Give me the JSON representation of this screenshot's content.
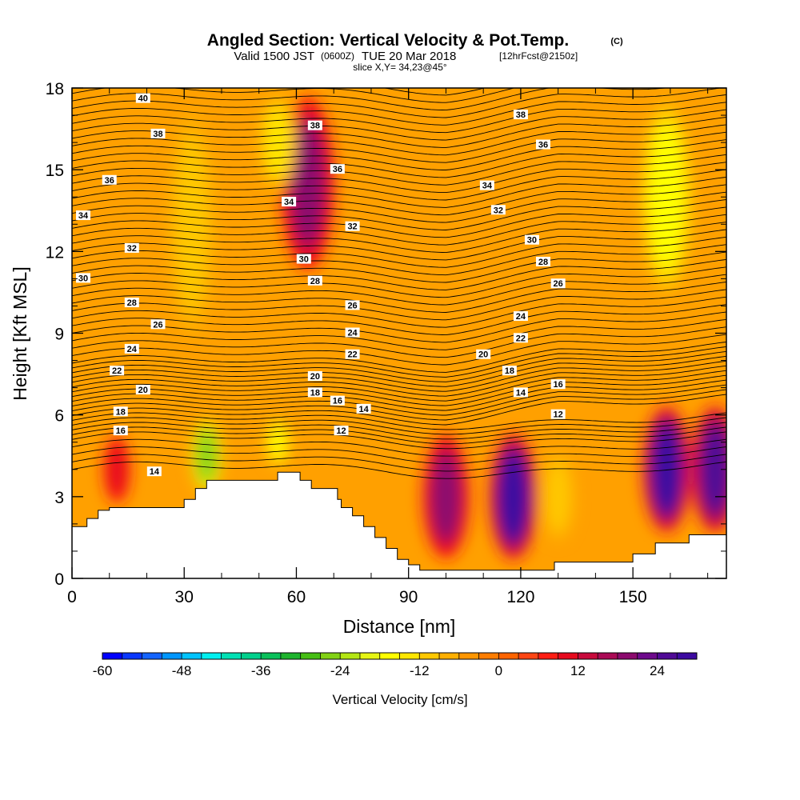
{
  "title": {
    "main": "Angled Section: Vertical Velocity & Pot.Temp.",
    "main_unit": "(C)",
    "valid_prefix": "Valid 1500 JST",
    "valid_zulu": "(0600Z)",
    "valid_date": "TUE 20 Mar 2018",
    "valid_fcst": "[12hrFcst@2150z]",
    "slice": "slice X,Y= 34,23@45°"
  },
  "chart_data": {
    "type": "heatmap",
    "xlabel": "Distance [nm]",
    "ylabel": "Height [Kft MSL]",
    "xlim": [
      0,
      175
    ],
    "ylim": [
      0,
      18
    ],
    "x_ticks": [
      0,
      30,
      60,
      90,
      120,
      150
    ],
    "x_tick_labels": [
      "0",
      "30",
      "60",
      "90",
      "120",
      "150"
    ],
    "y_ticks": [
      0,
      3,
      6,
      9,
      12,
      15,
      18
    ],
    "y_tick_labels": [
      "0",
      "3",
      "6",
      "9",
      "12",
      "15",
      "18"
    ],
    "terrain": {
      "description": "terrain height profile (Kft) along section",
      "x": [
        0,
        4,
        7,
        10,
        30,
        33,
        36,
        52,
        55,
        58,
        61,
        64,
        68,
        71,
        72,
        75,
        78,
        81,
        84,
        87,
        90,
        93,
        96,
        99,
        123,
        129,
        132,
        144,
        150,
        156,
        162,
        165,
        175
      ],
      "y": [
        1.9,
        2.2,
        2.5,
        2.6,
        2.9,
        3.3,
        3.6,
        3.6,
        3.9,
        3.9,
        3.6,
        3.3,
        3.3,
        2.9,
        2.6,
        2.3,
        1.9,
        1.5,
        1.1,
        0.7,
        0.5,
        0.3,
        0.3,
        0.3,
        0.3,
        0.6,
        0.6,
        0.6,
        0.9,
        1.3,
        1.3,
        1.6,
        1.6
      ]
    },
    "vertical_velocity_features": [
      {
        "kind": "updraft",
        "x": 63,
        "y_range": [
          11,
          18
        ],
        "peak": 18
      },
      {
        "kind": "updraft",
        "x": 100,
        "y_range": [
          0.5,
          5.5
        ],
        "peak": 18
      },
      {
        "kind": "updraft",
        "x": 118,
        "y_range": [
          0.5,
          5.5
        ],
        "peak": 27
      },
      {
        "kind": "updraft",
        "x": 159,
        "y_range": [
          1.5,
          6.5
        ],
        "peak": 27
      },
      {
        "kind": "updraft",
        "x": 172,
        "y_range": [
          1.5,
          6.5
        ],
        "peak": 24
      },
      {
        "kind": "updraft",
        "x": 12,
        "y_range": [
          2.5,
          5.5
        ],
        "peak": 9
      },
      {
        "kind": "downdraft",
        "x": 36,
        "y_range": [
          3,
          6
        ],
        "peak": -27
      },
      {
        "kind": "downdraft",
        "x": 55,
        "y_range": [
          4,
          6
        ],
        "peak": -18
      },
      {
        "kind": "downdraft",
        "x": 159,
        "y_range": [
          10,
          18
        ],
        "peak": -18
      },
      {
        "kind": "downdraft",
        "x": 130,
        "y_range": [
          1,
          5
        ],
        "peak": -12
      },
      {
        "kind": "downdraft",
        "x": 32,
        "y_range": [
          8,
          18
        ],
        "peak": -12
      },
      {
        "kind": "downdraft",
        "x": 55,
        "y_range": [
          14,
          18
        ],
        "peak": -15
      }
    ],
    "isentropes": {
      "levels": [
        12,
        14,
        16,
        18,
        20,
        22,
        24,
        26,
        28,
        30,
        32,
        34,
        36,
        38,
        40
      ],
      "labels": [
        {
          "text": "40",
          "x": 19,
          "y": 17.6
        },
        {
          "text": "38",
          "x": 23,
          "y": 16.3
        },
        {
          "text": "36",
          "x": 10,
          "y": 14.6
        },
        {
          "text": "34",
          "x": 3,
          "y": 13.3
        },
        {
          "text": "32",
          "x": 16,
          "y": 12.1
        },
        {
          "text": "30",
          "x": 3,
          "y": 11.0
        },
        {
          "text": "28",
          "x": 16,
          "y": 10.1
        },
        {
          "text": "26",
          "x": 23,
          "y": 9.3
        },
        {
          "text": "24",
          "x": 16,
          "y": 8.4
        },
        {
          "text": "22",
          "x": 12,
          "y": 7.6
        },
        {
          "text": "20",
          "x": 19,
          "y": 6.9
        },
        {
          "text": "18",
          "x": 13,
          "y": 6.1
        },
        {
          "text": "16",
          "x": 13,
          "y": 5.4
        },
        {
          "text": "14",
          "x": 22,
          "y": 3.9
        },
        {
          "text": "38",
          "x": 65,
          "y": 16.6
        },
        {
          "text": "36",
          "x": 71,
          "y": 15.0
        },
        {
          "text": "34",
          "x": 58,
          "y": 13.8
        },
        {
          "text": "32",
          "x": 75,
          "y": 12.9
        },
        {
          "text": "30",
          "x": 62,
          "y": 11.7
        },
        {
          "text": "28",
          "x": 65,
          "y": 10.9
        },
        {
          "text": "26",
          "x": 75,
          "y": 10.0
        },
        {
          "text": "24",
          "x": 75,
          "y": 9.0
        },
        {
          "text": "22",
          "x": 75,
          "y": 8.2
        },
        {
          "text": "20",
          "x": 65,
          "y": 7.4
        },
        {
          "text": "18",
          "x": 65,
          "y": 6.8
        },
        {
          "text": "16",
          "x": 71,
          "y": 6.5
        },
        {
          "text": "14",
          "x": 78,
          "y": 6.2
        },
        {
          "text": "12",
          "x": 72,
          "y": 5.4
        },
        {
          "text": "38",
          "x": 120,
          "y": 17.0
        },
        {
          "text": "36",
          "x": 126,
          "y": 15.9
        },
        {
          "text": "34",
          "x": 111,
          "y": 14.4
        },
        {
          "text": "32",
          "x": 114,
          "y": 13.5
        },
        {
          "text": "30",
          "x": 123,
          "y": 12.4
        },
        {
          "text": "28",
          "x": 126,
          "y": 11.6
        },
        {
          "text": "26",
          "x": 130,
          "y": 10.8
        },
        {
          "text": "24",
          "x": 120,
          "y": 9.6
        },
        {
          "text": "22",
          "x": 120,
          "y": 8.8
        },
        {
          "text": "20",
          "x": 110,
          "y": 8.2
        },
        {
          "text": "18",
          "x": 117,
          "y": 7.6
        },
        {
          "text": "14",
          "x": 120,
          "y": 6.8
        },
        {
          "text": "16",
          "x": 130,
          "y": 7.1
        },
        {
          "text": "12",
          "x": 130,
          "y": 6.0
        }
      ]
    },
    "colorbar": {
      "label": "Vertical Velocity [cm/s]",
      "range": [
        -60,
        30
      ],
      "step": 3,
      "tick_labels": [
        "-60",
        "-48",
        "-36",
        "-24",
        "-12",
        "0",
        "12",
        "24"
      ],
      "colors": [
        "#0000ff",
        "#0a37ff",
        "#1464ff",
        "#0096ff",
        "#00c3ff",
        "#00f0f0",
        "#00e0b4",
        "#00d08c",
        "#0ac05a",
        "#1eb42d",
        "#46be14",
        "#82d214",
        "#b4e614",
        "#e6f514",
        "#ffff00",
        "#ffe600",
        "#ffc800",
        "#ffaf00",
        "#ff9600",
        "#ff7d00",
        "#ff6400",
        "#ff4614",
        "#ff1e14",
        "#e60a1e",
        "#c80a3c",
        "#aa0a55",
        "#8c0a6e",
        "#6e0a8c",
        "#500a96",
        "#3c0aa0"
      ]
    }
  }
}
